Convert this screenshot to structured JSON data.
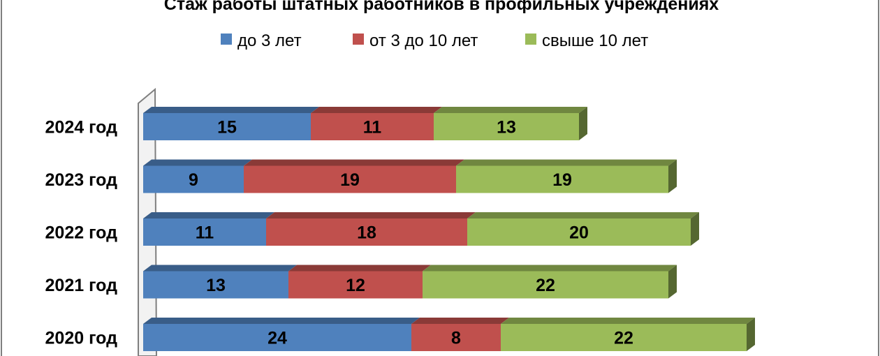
{
  "chart_data": {
    "type": "bar",
    "orientation": "horizontal",
    "stacked": true,
    "three_d": true,
    "title": "Стаж работы штатных работников в профильных учреждениях",
    "legend_position": "top",
    "categories": [
      "2024 год",
      "2023 год",
      "2022 год",
      "2021 год",
      "2020 год"
    ],
    "series": [
      {
        "name": "до  3 лет",
        "color": "#4f81bd",
        "values": [
          15,
          9,
          11,
          13,
          24
        ]
      },
      {
        "name": "от 3 до 10 лет",
        "color": "#c0504d",
        "values": [
          11,
          19,
          18,
          12,
          8
        ]
      },
      {
        "name": "свыше 10 лет",
        "color": "#9bbb59",
        "values": [
          13,
          19,
          20,
          22,
          22
        ]
      }
    ],
    "data_labels": true,
    "grid": false
  }
}
